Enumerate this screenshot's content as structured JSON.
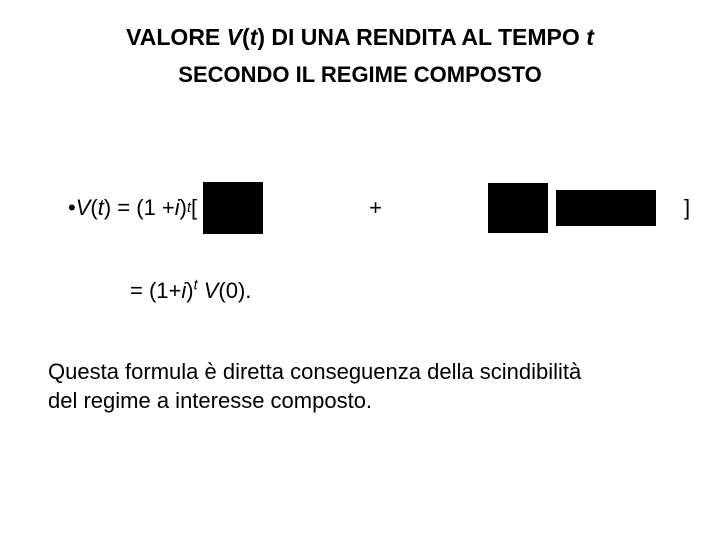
{
  "title": {
    "line1_a": "VALORE ",
    "line1_v": "V",
    "line1_lp": "(",
    "line1_t": "t",
    "line1_rp": ")",
    "line1_b": " DI UNA  RENDITA AL TEMPO ",
    "line1_t2": "t",
    "line2": "SECONDO IL REGIME COMPOSTO"
  },
  "formula1": {
    "bullet": "• ",
    "V": "V",
    "lp": "( ",
    "t": "t",
    "rp": " ) = (1 + ",
    "i": "i",
    "rp2": ")",
    "exp_t": "t",
    "lbrack": " [",
    "plus": "+",
    "rbrack": "]"
  },
  "formula2": {
    "eq": "= (1+",
    "i": "i",
    "rp": ")",
    "exp_t": "t",
    "sp": " ",
    "V": "V",
    "term": "(0)."
  },
  "para": {
    "line1": "Questa formula è diretta conseguenza della scindibilità",
    "line2": "del regime a interesse composto."
  },
  "style": {
    "background": "#ffffff",
    "text_color": "#000000",
    "box_color": "#000000",
    "title_fontsize": 23,
    "body_fontsize": 22,
    "font_family": "Arial"
  }
}
